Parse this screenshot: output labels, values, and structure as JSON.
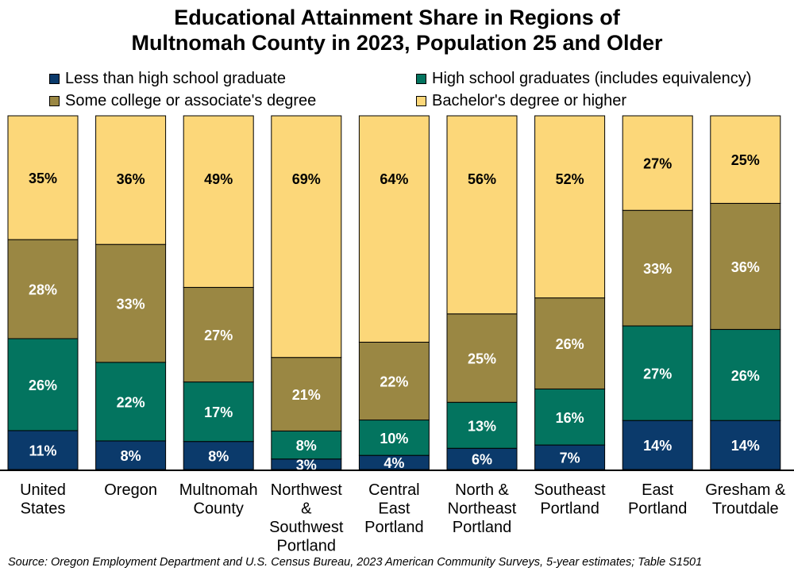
{
  "colors": {
    "less_than_hs": "#0b3a6b",
    "hs_grad": "#03745f",
    "some_college": "#9a8743",
    "bachelors": "#fcd779",
    "label_light": "#ffffff",
    "label_dark": "#000000"
  },
  "chart_data": {
    "type": "bar",
    "stacked": true,
    "percent": true,
    "title": [
      "Educational Attainment Share in Regions of",
      "Multnomah County in 2023, Population 25 and Older"
    ],
    "categories": [
      [
        "United",
        "States"
      ],
      [
        "Oregon"
      ],
      [
        "Multnomah",
        "County"
      ],
      [
        "Northwest",
        "&",
        "Southwest",
        "Portland"
      ],
      [
        "Central",
        "East",
        "Portland"
      ],
      [
        "North &",
        "Northeast",
        "Portland"
      ],
      [
        "Southeast",
        "Portland"
      ],
      [
        "East",
        "Portland"
      ],
      [
        "Gresham &",
        "Troutdale"
      ]
    ],
    "series": [
      {
        "name": "Less than high school graduate",
        "color_key": "less_than_hs",
        "values": [
          11,
          8,
          8,
          3,
          4,
          6,
          7,
          14,
          14
        ]
      },
      {
        "name": "High school graduates (includes equivalency)",
        "color_key": "hs_grad",
        "values": [
          26,
          22,
          17,
          8,
          10,
          13,
          16,
          27,
          26
        ]
      },
      {
        "name": "Some college or associate's degree",
        "color_key": "some_college",
        "values": [
          28,
          33,
          27,
          21,
          22,
          25,
          26,
          33,
          36
        ]
      },
      {
        "name": "Bachelor's degree or higher",
        "color_key": "bachelors",
        "values": [
          35,
          36,
          49,
          69,
          64,
          56,
          52,
          27,
          25
        ]
      }
    ],
    "data_labels": true,
    "ylim": [
      0,
      100
    ],
    "grid": false,
    "legend_position": "top"
  },
  "source": "Source: Oregon Employment Department and U.S. Census Bureau, 2023 American Community Surveys, 5-year estimates; Table S1501"
}
